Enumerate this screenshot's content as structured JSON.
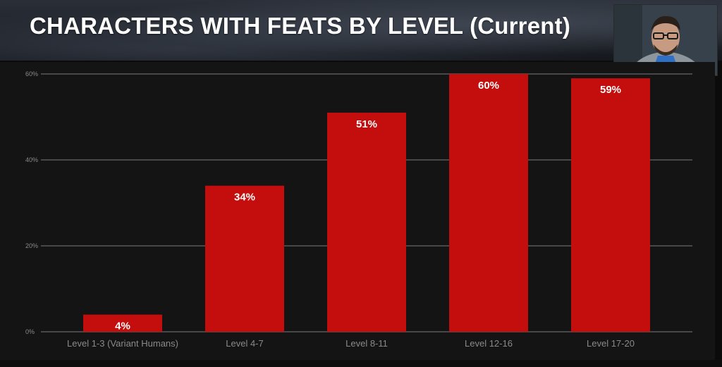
{
  "header": {
    "title": "CHARACTERS WITH FEATS BY LEVEL (Current)"
  },
  "colors": {
    "bar": "#c40d0d",
    "background": "#141414",
    "grid": "#7a7a7a",
    "tick_text": "#8a8a8a",
    "label_text": "#ffffff"
  },
  "chart_data": {
    "type": "bar",
    "categories": [
      "Level 1-3 (Variant Humans)",
      "Level 4-7",
      "Level 8-11",
      "Level 12-16",
      "Level 17-20"
    ],
    "values": [
      4,
      34,
      51,
      60,
      59
    ],
    "data_labels": [
      "4%",
      "34%",
      "51%",
      "60%",
      "59%"
    ],
    "yticks": [
      0,
      20,
      40,
      60
    ],
    "ytick_labels": [
      "0%",
      "20%",
      "40%",
      "60%"
    ],
    "ylim": [
      0,
      60
    ],
    "grid": true,
    "legend": "none"
  }
}
